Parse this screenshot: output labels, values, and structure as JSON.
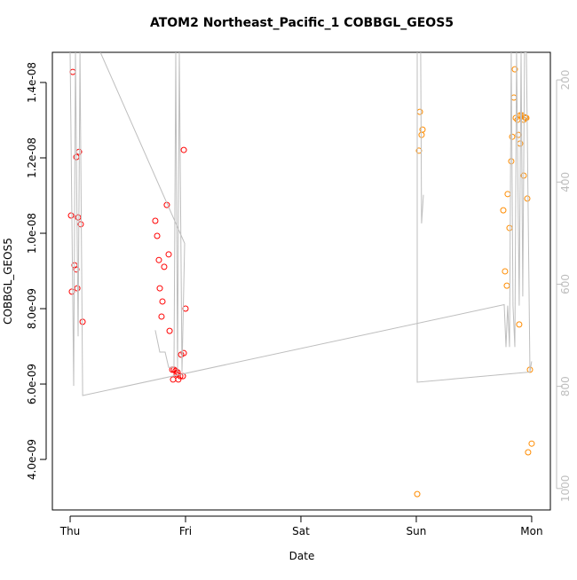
{
  "chart_data": {
    "type": "scatter",
    "title": "ATOM2 Northeast_Pacific_1 COBBGL_GEOS5",
    "x_label": "Date",
    "y_label": "COBBGL_GEOS5",
    "xlim": [
      -0.154,
      4.162
    ],
    "xticks": [
      {
        "value": 0,
        "label": "Thu"
      },
      {
        "value": 1,
        "label": "Fri"
      },
      {
        "value": 2,
        "label": "Sat"
      },
      {
        "value": 3,
        "label": "Sun"
      },
      {
        "value": 4,
        "label": "Mon"
      }
    ],
    "ylim": [
      2.66e-09,
      1.48e-08
    ],
    "yticks": [
      {
        "value": 4e-09,
        "label": "4.0e-09"
      },
      {
        "value": 6e-09,
        "label": "6.0e-09"
      },
      {
        "value": 8e-09,
        "label": "8.0e-09"
      },
      {
        "value": 1e-08,
        "label": "1.0e-08"
      },
      {
        "value": 1.2e-08,
        "label": "1.2e-08"
      },
      {
        "value": 1.4e-08,
        "label": "1.4e-08"
      }
    ],
    "y2lim": [
      1042,
      146
    ],
    "y2ticks": [
      200,
      400,
      600,
      800,
      1000
    ],
    "y2_color": "#bebebe",
    "series": [
      {
        "color": "#ff0000",
        "mode": "points",
        "x": [
          0.023,
          0.008,
          0.054,
          0.077,
          0.069,
          0.092,
          0.038,
          0.054,
          0.015,
          0.062,
          0.108,
          0.738,
          0.754,
          0.769,
          0.838,
          0.815,
          0.854,
          0.777,
          0.8,
          0.792,
          0.862,
          0.885,
          0.9,
          0.915,
          0.931,
          0.954,
          0.923,
          0.892,
          0.938,
          0.977,
          0.962,
          0.985,
          0.985,
          1.0
        ],
        "values": [
          1.428e-08,
          1.047e-08,
          1.202e-08,
          1.216e-08,
          1.042e-08,
          1.024e-08,
          9.15e-09,
          9.04e-09,
          8.45e-09,
          8.54e-09,
          7.65e-09,
          1.033e-08,
          9.93e-09,
          9.29e-09,
          1.075e-08,
          9.11e-09,
          9.44e-09,
          8.54e-09,
          8.19e-09,
          7.79e-09,
          7.41e-09,
          6.38e-09,
          6.38e-09,
          6.35e-09,
          6.31e-09,
          6.21e-09,
          6.26e-09,
          6.12e-09,
          6.12e-09,
          6.21e-09,
          6.78e-09,
          6.82e-09,
          1.221e-08,
          8e-09
        ]
      },
      {
        "color": "#ff8c00",
        "mode": "points",
        "x": [
          3.008,
          3.031,
          3.054,
          3.046,
          3.023,
          3.754,
          3.769,
          3.785,
          3.792,
          3.808,
          3.823,
          3.831,
          3.846,
          3.854,
          3.862,
          3.877,
          3.885,
          3.9,
          3.9,
          3.915,
          3.931,
          3.931,
          3.938,
          3.954,
          3.946,
          3.962,
          3.892,
          3.985,
          3.969,
          4.0
        ],
        "values": [
          3.08e-09,
          1.322e-08,
          1.275e-08,
          1.261e-08,
          1.219e-08,
          1.061e-08,
          8.99e-09,
          8.61e-09,
          1.104e-08,
          1.014e-08,
          1.191e-08,
          1.256e-08,
          1.36e-08,
          1.435e-08,
          1.306e-08,
          1.301e-08,
          1.261e-08,
          1.313e-08,
          1.238e-08,
          1.313e-08,
          1.301e-08,
          1.153e-08,
          1.308e-08,
          1.306e-08,
          1.306e-08,
          1.092e-08,
          7.58e-09,
          6.38e-09,
          4.19e-09,
          4.42e-09
        ]
      },
      {
        "color": "#bebebe",
        "mode": "line",
        "axis": "y2",
        "x": [
          0,
          0.031,
          0.046,
          0.069,
          0.085,
          0.108,
          3.762,
          3.777,
          3.792,
          3.808,
          3.823,
          3.838,
          3.854,
          3.869,
          3.892,
          3.908,
          3.923,
          3.938,
          3.954,
          3.985,
          4.0,
          null,
          0.738,
          0.777,
          0.823,
          0.854,
          0.9,
          0.915,
          0.931,
          0.946,
          0.969,
          0.992,
          0.262,
          null,
          3.008,
          3.008,
          3.985,
          null,
          3.038,
          3.046,
          3.062
        ],
        "values": [
          146,
          799,
          146,
          702,
          146,
          818,
          640,
          723,
          642,
          723,
          146,
          642,
          723,
          146,
          642,
          146,
          624,
          146,
          146,
          772,
          751,
          null,
          690,
          733,
          733,
          763,
          763,
          146,
          772,
          146,
          772,
          520,
          146,
          null,
          146,
          792,
          772,
          null,
          146,
          481,
          425
        ]
      }
    ]
  }
}
